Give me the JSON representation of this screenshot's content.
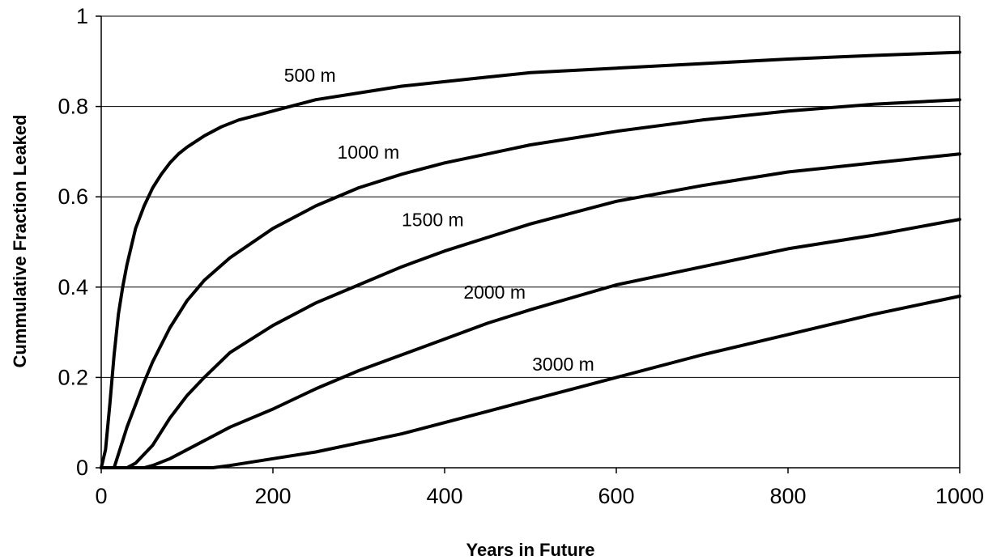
{
  "chart_data": {
    "type": "line",
    "title": "",
    "xlabel": "Years in Future",
    "ylabel": "Cummulative Fraction Leaked",
    "xlim": [
      0,
      1000
    ],
    "ylim": [
      0,
      1
    ],
    "grid": "horizontal",
    "legend": "inline labels",
    "x_ticks": [
      {
        "value": 0,
        "label": "0"
      },
      {
        "value": 200,
        "label": "200"
      },
      {
        "value": 400,
        "label": "400"
      },
      {
        "value": 600,
        "label": "600"
      },
      {
        "value": 800,
        "label": "800"
      },
      {
        "value": 1000,
        "label": "1000"
      }
    ],
    "y_ticks": [
      {
        "value": 0,
        "label": "0"
      },
      {
        "value": 0.2,
        "label": "0.2"
      },
      {
        "value": 0.4,
        "label": "0.4"
      },
      {
        "value": 0.6,
        "label": "0.6"
      },
      {
        "value": 0.8,
        "label": "0.8"
      },
      {
        "value": 1,
        "label": "1"
      }
    ],
    "series": [
      {
        "name": "500 m",
        "label_at": [
          213,
          0.855
        ],
        "x": [
          0,
          5,
          10,
          15,
          20,
          25,
          30,
          40,
          50,
          60,
          70,
          80,
          90,
          100,
          120,
          140,
          160,
          180,
          200,
          220,
          250,
          300,
          350,
          400,
          450,
          500,
          600,
          700,
          800,
          900,
          1000
        ],
        "y": [
          0,
          0.04,
          0.14,
          0.25,
          0.34,
          0.4,
          0.45,
          0.53,
          0.58,
          0.62,
          0.65,
          0.675,
          0.695,
          0.71,
          0.735,
          0.755,
          0.77,
          0.78,
          0.79,
          0.8,
          0.815,
          0.83,
          0.845,
          0.855,
          0.865,
          0.875,
          0.885,
          0.895,
          0.905,
          0.913,
          0.92
        ]
      },
      {
        "name": "1000 m",
        "label_at": [
          275,
          0.685
        ],
        "x": [
          0,
          15,
          20,
          30,
          40,
          50,
          60,
          80,
          100,
          120,
          150,
          200,
          250,
          300,
          350,
          400,
          450,
          500,
          600,
          700,
          800,
          900,
          1000
        ],
        "y": [
          0,
          0.0,
          0.03,
          0.09,
          0.14,
          0.19,
          0.235,
          0.31,
          0.37,
          0.415,
          0.465,
          0.53,
          0.58,
          0.62,
          0.65,
          0.675,
          0.695,
          0.715,
          0.745,
          0.77,
          0.79,
          0.805,
          0.815
        ]
      },
      {
        "name": "1500 m",
        "label_at": [
          350,
          0.535
        ],
        "x": [
          0,
          30,
          40,
          50,
          60,
          80,
          100,
          120,
          150,
          200,
          250,
          300,
          350,
          400,
          450,
          500,
          600,
          700,
          800,
          900,
          1000
        ],
        "y": [
          0,
          0.0,
          0.01,
          0.03,
          0.05,
          0.11,
          0.16,
          0.2,
          0.255,
          0.315,
          0.365,
          0.405,
          0.445,
          0.48,
          0.51,
          0.54,
          0.59,
          0.625,
          0.655,
          0.675,
          0.695
        ]
      },
      {
        "name": "2000 m",
        "label_at": [
          422,
          0.375
        ],
        "x": [
          0,
          50,
          60,
          80,
          100,
          150,
          200,
          250,
          300,
          350,
          400,
          450,
          500,
          600,
          700,
          800,
          900,
          1000
        ],
        "y": [
          0,
          0.0,
          0.005,
          0.02,
          0.04,
          0.09,
          0.13,
          0.175,
          0.215,
          0.25,
          0.285,
          0.32,
          0.35,
          0.405,
          0.445,
          0.485,
          0.515,
          0.55
        ]
      },
      {
        "name": "3000 m",
        "label_at": [
          502,
          0.215
        ],
        "x": [
          0,
          100,
          130,
          150,
          200,
          250,
          300,
          350,
          400,
          450,
          500,
          550,
          600,
          700,
          800,
          900,
          1000
        ],
        "y": [
          0,
          0.0,
          0.0,
          0.005,
          0.02,
          0.035,
          0.055,
          0.075,
          0.1,
          0.125,
          0.15,
          0.175,
          0.2,
          0.25,
          0.295,
          0.34,
          0.38
        ]
      }
    ]
  }
}
